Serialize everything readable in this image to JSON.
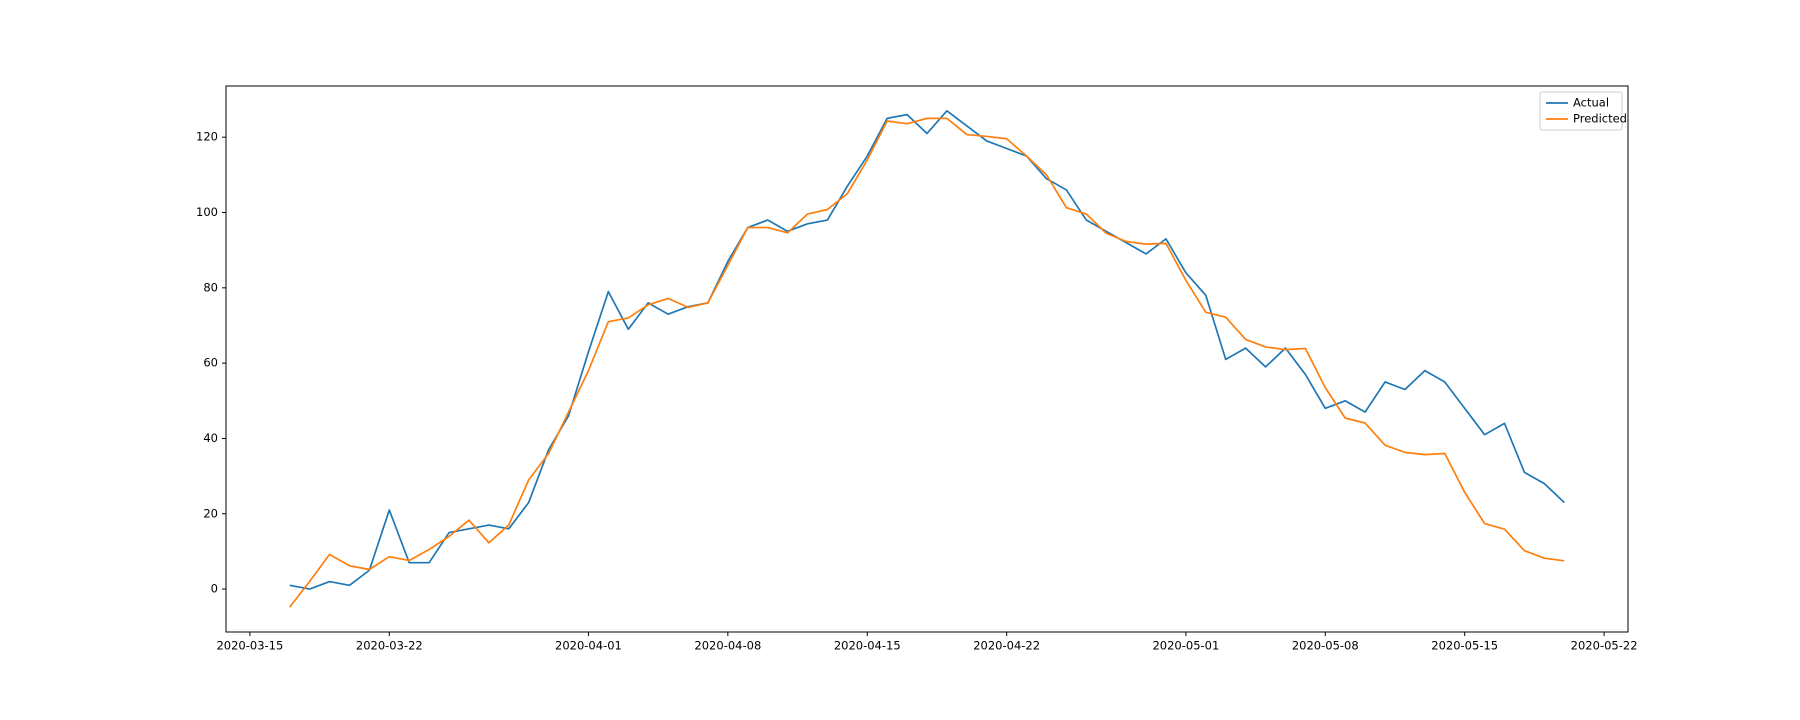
{
  "chart_data": {
    "type": "line",
    "x": [
      "2020-03-17",
      "2020-03-18",
      "2020-03-19",
      "2020-03-20",
      "2020-03-21",
      "2020-03-22",
      "2020-03-23",
      "2020-03-24",
      "2020-03-25",
      "2020-03-26",
      "2020-03-27",
      "2020-03-28",
      "2020-03-29",
      "2020-03-30",
      "2020-03-31",
      "2020-04-01",
      "2020-04-02",
      "2020-04-03",
      "2020-04-04",
      "2020-04-05",
      "2020-04-06",
      "2020-04-07",
      "2020-04-08",
      "2020-04-09",
      "2020-04-10",
      "2020-04-11",
      "2020-04-12",
      "2020-04-13",
      "2020-04-14",
      "2020-04-15",
      "2020-04-16",
      "2020-04-17",
      "2020-04-18",
      "2020-04-19",
      "2020-04-20",
      "2020-04-21",
      "2020-04-22",
      "2020-04-23",
      "2020-04-24",
      "2020-04-25",
      "2020-04-26",
      "2020-04-27",
      "2020-04-28",
      "2020-04-29",
      "2020-04-30",
      "2020-05-01",
      "2020-05-02",
      "2020-05-03",
      "2020-05-04",
      "2020-05-05",
      "2020-05-06",
      "2020-05-07",
      "2020-05-08",
      "2020-05-09",
      "2020-05-10",
      "2020-05-11",
      "2020-05-12",
      "2020-05-13",
      "2020-05-14",
      "2020-05-15",
      "2020-05-16",
      "2020-05-17",
      "2020-05-18",
      "2020-05-19",
      "2020-05-20"
    ],
    "series": [
      {
        "name": "Actual",
        "color": "#1f77b4",
        "values": [
          1,
          0,
          2,
          1,
          5,
          21,
          7,
          7,
          15,
          16,
          17,
          16,
          23,
          37,
          46,
          63,
          79,
          69,
          76,
          73,
          75,
          76,
          87,
          96,
          98,
          95,
          97,
          98,
          107,
          115,
          125,
          126,
          121,
          127,
          123,
          119,
          117,
          115,
          109,
          106,
          98,
          95,
          92,
          89,
          93,
          84,
          78,
          61,
          64,
          59,
          64,
          57,
          48,
          50,
          47,
          55,
          53,
          58,
          55,
          48,
          41,
          44,
          31,
          28,
          23
        ]
      },
      {
        "name": "Predicted",
        "color": "#ff7f0e",
        "values": [
          -4.8,
          2,
          9.2,
          6.2,
          5.2,
          8.6,
          7.6,
          10.5,
          14,
          18.3,
          12.3,
          17,
          29,
          36,
          47,
          58,
          71,
          72,
          75.5,
          77.2,
          74.8,
          76,
          86,
          96,
          96,
          94.6,
          99.6,
          100.8,
          105,
          114,
          124.3,
          123.6,
          125,
          125,
          120.7,
          120.2,
          119.6,
          115,
          110,
          101.3,
          99.6,
          94.5,
          92.3,
          91.6,
          91.8,
          82,
          73.5,
          72.2,
          66.3,
          64.3,
          63.6,
          63.9,
          53.5,
          45.4,
          44.1,
          38.2,
          36.3,
          35.7,
          36,
          25.7,
          17.4,
          15.9,
          10.2,
          8.2,
          7.5
        ]
      }
    ],
    "xlim": [
      "2020-03-13T19:12Z",
      "2020-05-23T04:48Z"
    ],
    "xticks": [
      "2020-03-15",
      "2020-03-22",
      "2020-04-01",
      "2020-04-08",
      "2020-04-15",
      "2020-04-22",
      "2020-05-01",
      "2020-05-08",
      "2020-05-15",
      "2020-05-22"
    ],
    "ylim": [
      -11.4,
      133.6
    ],
    "yticks": [
      0,
      20,
      40,
      60,
      80,
      100,
      120
    ],
    "legend": "upper right"
  }
}
